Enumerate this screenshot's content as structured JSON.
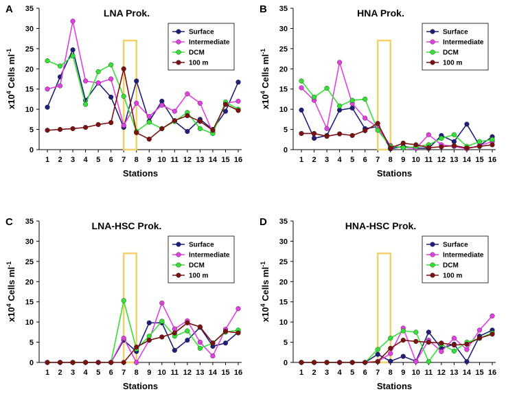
{
  "chart_data": [
    {
      "type": "line",
      "panel": "A",
      "title": "LNA Prok.",
      "xlabel": "Stations",
      "ylabel": "x10",
      "ylabel_sup": "4",
      "ylabel_rest": " Cells ml",
      "ylabel_sup2": "-1",
      "categories": [
        "1",
        "2",
        "3",
        "4",
        "5",
        "6",
        "7",
        "8",
        "9",
        "10",
        "11",
        "12",
        "13",
        "14",
        "15",
        "16"
      ],
      "y_ticks": [
        "0",
        "5",
        "10",
        "15",
        "20",
        "25",
        "30",
        "35"
      ],
      "ylim": [
        0,
        35
      ],
      "highlight_stations": [
        7,
        8
      ],
      "series": [
        {
          "name": "Surface",
          "color": "#1f1f7a",
          "values": [
            10.5,
            18,
            24.7,
            12.2,
            16.5,
            13,
            5.5,
            17,
            7,
            12,
            7,
            4.5,
            7.5,
            5,
            9.5,
            16.7
          ]
        },
        {
          "name": "Intermediate",
          "color": "#e040e0",
          "values": [
            15,
            15.8,
            31.8,
            17,
            16.5,
            17.5,
            6,
            11.5,
            8.2,
            11,
            9.5,
            13.8,
            11.5,
            4.2,
            11.5,
            12
          ]
        },
        {
          "name": "DCM",
          "color": "#33e033",
          "values": [
            22,
            20.7,
            23.2,
            11.2,
            19.3,
            21,
            13.2,
            4.5,
            6.8,
            5.2,
            7,
            9.2,
            5.2,
            4,
            11.8,
            10
          ]
        },
        {
          "name": "100 m",
          "color": "#7b1010",
          "values": [
            4.8,
            5,
            5.2,
            5.5,
            6.2,
            6.7,
            20,
            4.2,
            2.6,
            5.2,
            7.2,
            8.4,
            7,
            4.8,
            11.2,
            9.7
          ]
        }
      ]
    },
    {
      "type": "line",
      "panel": "B",
      "title": "HNA Prok.",
      "xlabel": "Stations",
      "ylabel": "x10",
      "ylabel_sup": "4",
      "ylabel_rest": " Cells ml",
      "ylabel_sup2": "-1",
      "categories": [
        "1",
        "2",
        "3",
        "4",
        "5",
        "6",
        "7",
        "8",
        "9",
        "10",
        "11",
        "12",
        "13",
        "14",
        "15",
        "16"
      ],
      "y_ticks": [
        "0",
        "5",
        "10",
        "15",
        "20",
        "25",
        "30",
        "35"
      ],
      "ylim": [
        0,
        35
      ],
      "highlight_stations": [
        7,
        8
      ],
      "series": [
        {
          "name": "Surface",
          "color": "#1f1f7a",
          "values": [
            9.8,
            2.8,
            3.5,
            9.8,
            10.3,
            5.2,
            5.7,
            0.2,
            0.8,
            0.4,
            0.3,
            3.5,
            2,
            6.3,
            1,
            3.2
          ]
        },
        {
          "name": "Intermediate",
          "color": "#e040e0",
          "values": [
            15.3,
            12.2,
            5.2,
            21.6,
            11.4,
            7.8,
            5.5,
            1,
            0.5,
            0.3,
            3.7,
            1.2,
            0.8,
            0.2,
            1,
            2
          ]
        },
        {
          "name": "DCM",
          "color": "#33e033",
          "values": [
            17,
            13,
            15.2,
            10.8,
            12.2,
            12.5,
            4.8,
            0.8,
            0.5,
            0.7,
            1.2,
            2.8,
            3.7,
            0.8,
            2,
            2.5
          ]
        },
        {
          "name": "100 m",
          "color": "#7b1010",
          "values": [
            4,
            4,
            3.3,
            3.9,
            3.5,
            4.7,
            6.5,
            0.4,
            1.6,
            1.2,
            0.5,
            0.7,
            1,
            0.4,
            0.8,
            1.2
          ]
        }
      ]
    },
    {
      "type": "line",
      "panel": "C",
      "title": "LNA-HSC Prok.",
      "xlabel": "Stations",
      "ylabel": "x10",
      "ylabel_sup": "4",
      "ylabel_rest": " Cells ml",
      "ylabel_sup2": "-1",
      "categories": [
        "1",
        "2",
        "3",
        "4",
        "5",
        "6",
        "7",
        "8",
        "9",
        "10",
        "11",
        "12",
        "13",
        "14",
        "15",
        "16"
      ],
      "y_ticks": [
        "0",
        "5",
        "10",
        "15",
        "20",
        "25",
        "30",
        "35"
      ],
      "ylim": [
        0,
        35
      ],
      "highlight_stations": [
        7,
        8
      ],
      "series": [
        {
          "name": "Surface",
          "color": "#1f1f7a",
          "values": [
            0,
            0,
            0,
            0,
            0,
            0,
            5.5,
            2.7,
            9.8,
            9.8,
            3,
            5.5,
            8.7,
            4,
            4.8,
            7.5
          ]
        },
        {
          "name": "Intermediate",
          "color": "#e040e0",
          "values": [
            0,
            0,
            0,
            0,
            0,
            0,
            6,
            0,
            5.5,
            14.7,
            8.3,
            10.3,
            5,
            1.6,
            8.2,
            13.3
          ]
        },
        {
          "name": "DCM",
          "color": "#33e033",
          "values": [
            0,
            0,
            0,
            0,
            0,
            0,
            15.3,
            3.3,
            6.5,
            10.2,
            6.5,
            7.8,
            3.5,
            4.8,
            7.5,
            8
          ]
        },
        {
          "name": "100 m",
          "color": "#7b1010",
          "values": [
            0,
            0,
            0,
            0,
            0,
            0,
            0,
            3.8,
            5.5,
            6.3,
            7.3,
            9.8,
            8.8,
            4.8,
            7.7,
            7.3
          ]
        }
      ]
    },
    {
      "type": "line",
      "panel": "D",
      "title": "HNA-HSC Prok.",
      "xlabel": "Stations",
      "ylabel": "x10",
      "ylabel_sup": "4",
      "ylabel_rest": " Cells ml",
      "ylabel_sup2": "-1",
      "categories": [
        "1",
        "2",
        "3",
        "4",
        "5",
        "6",
        "7",
        "8",
        "9",
        "10",
        "11",
        "12",
        "13",
        "14",
        "15",
        "16"
      ],
      "y_ticks": [
        "0",
        "5",
        "10",
        "15",
        "20",
        "25",
        "30",
        "35"
      ],
      "ylim": [
        0,
        35
      ],
      "highlight_stations": [
        7,
        8
      ],
      "series": [
        {
          "name": "Surface",
          "color": "#1f1f7a",
          "values": [
            0,
            0,
            0,
            0,
            0,
            0,
            2,
            0.3,
            1.5,
            0.3,
            7.5,
            3.5,
            4.5,
            0.2,
            6.5,
            8
          ]
        },
        {
          "name": "Intermediate",
          "color": "#e040e0",
          "values": [
            0,
            0,
            0,
            0,
            0,
            0,
            0.2,
            2.2,
            8.5,
            0.2,
            5.5,
            2.7,
            6,
            3.2,
            8,
            11.5
          ]
        },
        {
          "name": "DCM",
          "color": "#33e033",
          "values": [
            0,
            0,
            0,
            0,
            0,
            0,
            3.2,
            6,
            7.8,
            7.5,
            0.2,
            4.5,
            2.8,
            5,
            6,
            7.3
          ]
        },
        {
          "name": "100 m",
          "color": "#7b1010",
          "values": [
            0,
            0,
            0,
            0,
            0,
            0,
            0.2,
            3.5,
            5.5,
            5.2,
            5,
            4.8,
            4.3,
            4.5,
            6,
            7
          ]
        }
      ]
    }
  ]
}
